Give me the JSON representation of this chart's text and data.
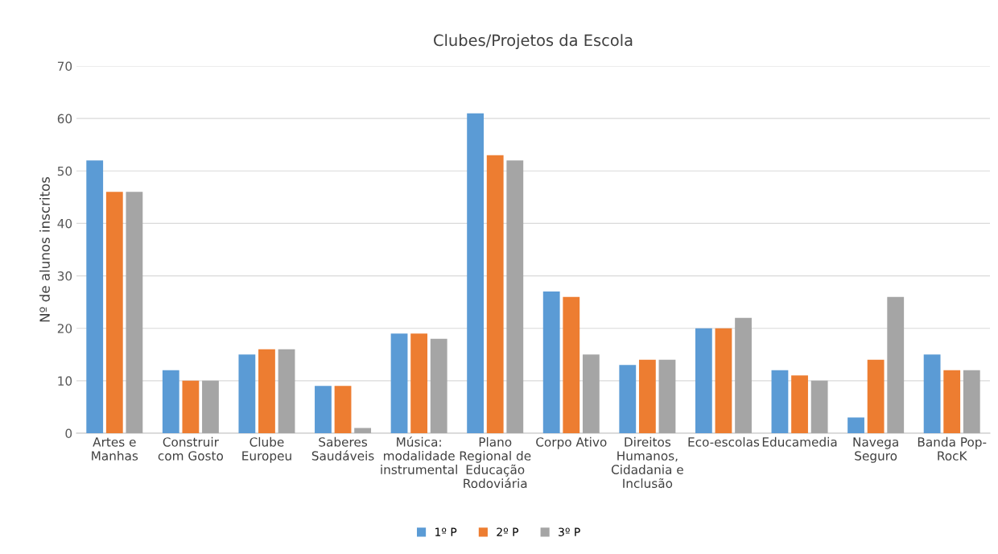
{
  "chart_data": {
    "type": "bar",
    "title": "Clubes/Projetos da Escola",
    "ylabel": "Nº de alunos inscritos",
    "categories": [
      "Artes e\nManhas",
      "Construir\ncom Gosto",
      "Clube\nEuropeu",
      "Saberes\nSaudáveis",
      "Música:\nmodalidade\ninstrumental",
      "Plano\nRegional de\nEducação\nRodoviária",
      "Corpo Ativo",
      "Direitos\nHumanos,\nCidadania e\nInclusão",
      "Eco-escolas",
      "Educamedia",
      "Navega\nSeguro",
      "Banda Pop-\nRocK"
    ],
    "series": [
      {
        "name": "1º P",
        "color": "#5b9bd5",
        "values": [
          52,
          12,
          15,
          9,
          19,
          61,
          27,
          13,
          20,
          12,
          3,
          15
        ]
      },
      {
        "name": "2º P",
        "color": "#ed7d31",
        "values": [
          46,
          10,
          16,
          9,
          19,
          53,
          26,
          14,
          20,
          11,
          14,
          12
        ]
      },
      {
        "name": "3º P",
        "color": "#a5a5a5",
        "values": [
          46,
          10,
          16,
          1,
          18,
          52,
          15,
          14,
          22,
          10,
          26,
          12
        ]
      }
    ],
    "ylim": [
      0,
      70
    ],
    "yticks": [
      0,
      10,
      20,
      30,
      40,
      50,
      60,
      70
    ],
    "grid": "y",
    "legend": "bottom"
  }
}
